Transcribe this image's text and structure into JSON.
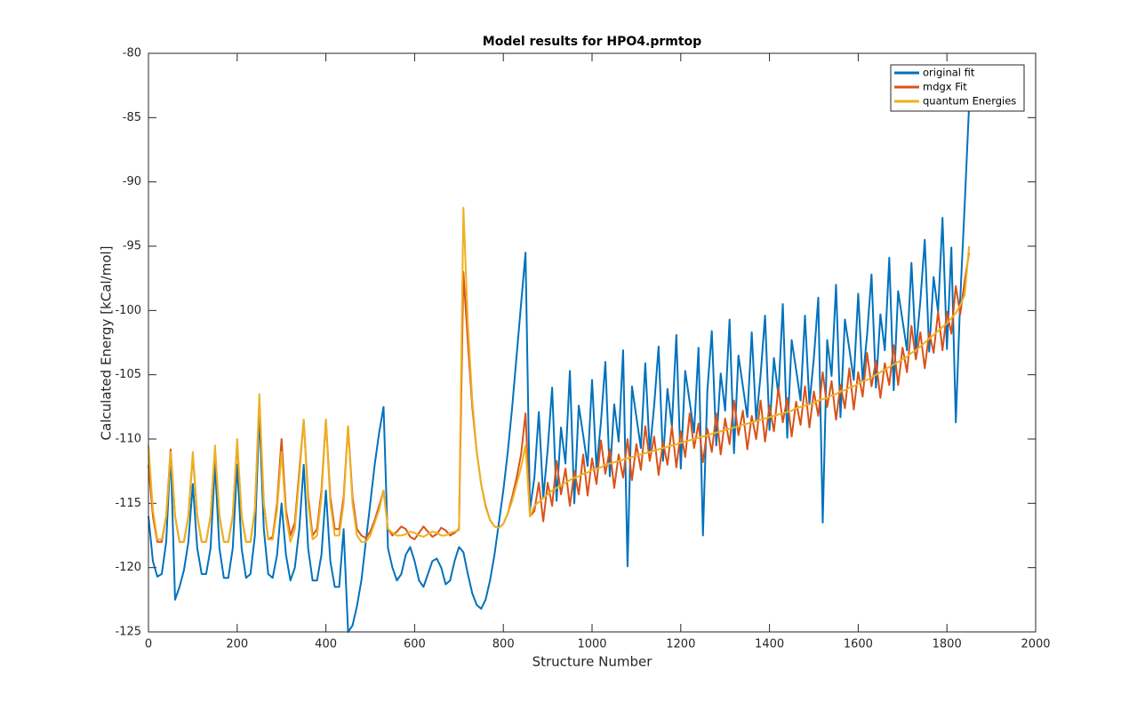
{
  "chart_data": {
    "type": "line",
    "title": "Model results for HPO4.prmtop",
    "x_label": "Structure Number",
    "y_label": "Calculated Energy [kCal/mol]",
    "xlim": [
      0,
      2000
    ],
    "xticks": [
      0,
      200,
      400,
      600,
      800,
      1000,
      1200,
      1400,
      1600,
      1800,
      2000
    ],
    "ylim": [
      -125,
      -80
    ],
    "yticks": [
      -125,
      -120,
      -115,
      -110,
      -105,
      -100,
      -95,
      -90,
      -85,
      -80
    ],
    "grid": false,
    "legend": "northeast",
    "x": [
      0,
      10,
      20,
      30,
      40,
      50,
      60,
      70,
      80,
      90,
      100,
      110,
      120,
      130,
      140,
      150,
      160,
      170,
      180,
      190,
      200,
      210,
      220,
      230,
      240,
      250,
      260,
      270,
      280,
      290,
      300,
      310,
      320,
      330,
      340,
      350,
      360,
      370,
      380,
      390,
      400,
      410,
      420,
      430,
      440,
      450,
      460,
      470,
      480,
      490,
      500,
      510,
      520,
      530,
      540,
      550,
      560,
      570,
      580,
      590,
      600,
      610,
      620,
      630,
      640,
      650,
      660,
      670,
      680,
      690,
      700,
      710,
      720,
      730,
      740,
      750,
      760,
      770,
      780,
      790,
      800,
      810,
      820,
      830,
      840,
      850,
      860,
      870,
      880,
      890,
      900,
      910,
      920,
      930,
      940,
      950,
      960,
      970,
      980,
      990,
      1000,
      1010,
      1020,
      1030,
      1040,
      1050,
      1060,
      1070,
      1080,
      1090,
      1100,
      1110,
      1120,
      1130,
      1140,
      1150,
      1160,
      1170,
      1180,
      1190,
      1200,
      1210,
      1220,
      1230,
      1240,
      1250,
      1260,
      1270,
      1280,
      1290,
      1300,
      1310,
      1320,
      1330,
      1340,
      1350,
      1360,
      1370,
      1380,
      1390,
      1400,
      1410,
      1420,
      1430,
      1440,
      1450,
      1460,
      1470,
      1480,
      1490,
      1500,
      1510,
      1520,
      1530,
      1540,
      1550,
      1560,
      1570,
      1580,
      1590,
      1600,
      1610,
      1620,
      1630,
      1640,
      1650,
      1660,
      1670,
      1680,
      1690,
      1700,
      1710,
      1720,
      1730,
      1740,
      1750,
      1760,
      1770,
      1780,
      1790,
      1800,
      1810,
      1820,
      1830,
      1840,
      1850
    ],
    "series": [
      {
        "name": "original fit",
        "color": "#0072BD",
        "values": [
          -116,
          -119.5,
          -120.7,
          -120.5,
          -118,
          -111,
          -122.5,
          -121.5,
          -120.2,
          -118,
          -113.5,
          -118.5,
          -120.5,
          -120.5,
          -118.5,
          -112,
          -118.5,
          -120.8,
          -120.8,
          -118.5,
          -112,
          -118.5,
          -120.8,
          -120.5,
          -117.5,
          -108,
          -117,
          -120.5,
          -120.8,
          -119,
          -115,
          -119,
          -121,
          -120,
          -117,
          -112,
          -118.5,
          -121,
          -121,
          -119,
          -114,
          -119.5,
          -121.5,
          -121.5,
          -117,
          -125,
          -124.5,
          -123,
          -121,
          -118,
          -115,
          -112,
          -109.5,
          -107.5,
          -118.5,
          -120,
          -121,
          -120.5,
          -119,
          -118.4,
          -119.5,
          -121,
          -121.5,
          -120.5,
          -119.5,
          -119.3,
          -120,
          -121.3,
          -121,
          -119.5,
          -118.4,
          -118.8,
          -120.5,
          -122,
          -122.9,
          -123.2,
          -122.5,
          -121,
          -119,
          -116.5,
          -114,
          -111,
          -107.5,
          -103.5,
          -99.5,
          -95.5,
          -115.5,
          -113,
          -107.9,
          -114.6,
          -110.8,
          -106.0,
          -114.8,
          -109.1,
          -111.9,
          -104.7,
          -115.0,
          -107.4,
          -109.7,
          -112.1,
          -105.4,
          -112.3,
          -108.7,
          -104.0,
          -112.9,
          -107.3,
          -110.2,
          -103.1,
          -119.9,
          -105.9,
          -108.3,
          -110.7,
          -104.1,
          -111.0,
          -107.4,
          -102.8,
          -111.7,
          -106.1,
          -109.0,
          -101.9,
          -112.3,
          -104.7,
          -107.1,
          -109.5,
          -102.9,
          -117.5,
          -106.2,
          -101.6,
          -110.5,
          -104.9,
          -107.8,
          -100.7,
          -111.1,
          -103.5,
          -105.9,
          -108.3,
          -101.7,
          -108.6,
          -105.0,
          -100.4,
          -109.3,
          -103.7,
          -106.6,
          -99.5,
          -109.9,
          -102.3,
          -104.6,
          -107.0,
          -100.4,
          -107.3,
          -103.7,
          -99.0,
          -116.5,
          -102.3,
          -105.1,
          -98.0,
          -108.3,
          -100.7,
          -103.0,
          -105.4,
          -98.7,
          -105.5,
          -101.9,
          -97.2,
          -106.0,
          -100.3,
          -103.1,
          -95.9,
          -106.2,
          -98.5,
          -100.8,
          -103.1,
          -96.3,
          -103.1,
          -99.3,
          -94.5,
          -103.2,
          -97.4,
          -100.1,
          -92.8,
          -103.0,
          -95.1,
          -108.7,
          -99.1,
          -91.8,
          -84
        ]
      },
      {
        "name": "mdgx Fit",
        "color": "#D95319",
        "values": [
          -112,
          -116,
          -118,
          -118,
          -116,
          -110.8,
          -116,
          -118,
          -118,
          -116,
          -111.2,
          -116,
          -118,
          -118,
          -116,
          -110.8,
          -116,
          -118,
          -118,
          -116,
          -110.3,
          -116,
          -118,
          -118,
          -115.5,
          -107,
          -115,
          -117.8,
          -117.6,
          -115,
          -110,
          -115.5,
          -117.5,
          -116.5,
          -112.5,
          -108.5,
          -114.5,
          -117.5,
          -117,
          -114,
          -108.5,
          -114.5,
          -117,
          -117,
          -114.5,
          -109,
          -114.5,
          -117,
          -117.5,
          -117.7,
          -117.2,
          -116.3,
          -115.2,
          -114,
          -117,
          -117.5,
          -117.2,
          -116.8,
          -117,
          -117.6,
          -117.8,
          -117.3,
          -116.8,
          -117.2,
          -117.6,
          -117.4,
          -116.9,
          -117.1,
          -117.5,
          -117.3,
          -117,
          -97,
          -102.5,
          -107.5,
          -111,
          -113.5,
          -115.2,
          -116.3,
          -116.8,
          -116.9,
          -116.6,
          -115.8,
          -114.5,
          -113,
          -111.2,
          -108,
          -116,
          -115.6,
          -113.4,
          -116.4,
          -113.4,
          -115.2,
          -111.7,
          -114.3,
          -112.3,
          -115.2,
          -112.5,
          -114.3,
          -111.2,
          -114.4,
          -111.5,
          -113.5,
          -110.1,
          -112.7,
          -110.8,
          -113.8,
          -111.2,
          -113.0,
          -110.0,
          -113.2,
          -110.4,
          -112.4,
          -109.0,
          -111.7,
          -109.8,
          -112.8,
          -110.2,
          -112.0,
          -109.0,
          -112.2,
          -109.4,
          -111.4,
          -108.0,
          -110.7,
          -108.8,
          -111.8,
          -109.2,
          -111.0,
          -108.0,
          -111.2,
          -108.4,
          -110.4,
          -107.0,
          -109.7,
          -107.8,
          -110.8,
          -108.2,
          -110.0,
          -107.0,
          -110.2,
          -107.4,
          -109.4,
          -106.0,
          -108.7,
          -106.8,
          -109.8,
          -107.1,
          -108.9,
          -105.9,
          -109.1,
          -106.3,
          -108.2,
          -104.8,
          -107.5,
          -105.5,
          -108.5,
          -105.8,
          -107.6,
          -104.5,
          -107.7,
          -104.8,
          -106.7,
          -103.3,
          -105.9,
          -103.9,
          -106.8,
          -104.1,
          -105.8,
          -102.7,
          -105.8,
          -102.9,
          -104.8,
          -101.2,
          -103.8,
          -101.7,
          -104.5,
          -101.7,
          -103.3,
          -100.1,
          -103.1,
          -100.1,
          -101.8,
          -98.1,
          -100.3,
          -97.7,
          -95.5
        ]
      },
      {
        "name": "quantum Energies",
        "color": "#EDB120",
        "values": [
          -110.5,
          -115.5,
          -117.8,
          -117.8,
          -116,
          -111,
          -116,
          -118,
          -118,
          -116,
          -111,
          -116,
          -118,
          -118,
          -116,
          -110.5,
          -116,
          -118,
          -118,
          -116,
          -110,
          -116,
          -118,
          -118,
          -115.5,
          -106.5,
          -115,
          -117.8,
          -117.8,
          -115.5,
          -111,
          -116,
          -118,
          -117,
          -113,
          -108.5,
          -115,
          -117.8,
          -117.5,
          -114.5,
          -108.5,
          -115,
          -117.5,
          -117.5,
          -115,
          -109,
          -115,
          -117.5,
          -118,
          -118,
          -117.5,
          -116.5,
          -115.5,
          -114,
          -117,
          -117.3,
          -117.5,
          -117.5,
          -117.4,
          -117.2,
          -117.3,
          -117.5,
          -117.6,
          -117.4,
          -117.2,
          -117.3,
          -117.5,
          -117.5,
          -117.3,
          -117.2,
          -117.1,
          -92,
          -101,
          -107,
          -111,
          -113.5,
          -115.3,
          -116.3,
          -116.8,
          -116.9,
          -116.6,
          -115.8,
          -114.8,
          -113.5,
          -112.2,
          -110.5,
          -116,
          -115.2,
          -114.9,
          -114.6,
          -114.3,
          -114.0,
          -113.8,
          -113.6,
          -113.4,
          -113.2,
          -113.0,
          -112.9,
          -112.7,
          -112.6,
          -112.4,
          -112.3,
          -112.2,
          -112.0,
          -111.9,
          -111.8,
          -111.7,
          -111.6,
          -111.5,
          -111.4,
          -111.3,
          -111.2,
          -111.1,
          -111.0,
          -110.9,
          -110.8,
          -110.7,
          -110.6,
          -110.5,
          -110.4,
          -110.3,
          -110.2,
          -110.1,
          -110.0,
          -109.9,
          -109.8,
          -109.7,
          -109.6,
          -109.5,
          -109.4,
          -109.3,
          -109.2,
          -109.1,
          -109.0,
          -108.9,
          -108.8,
          -108.7,
          -108.6,
          -108.5,
          -108.4,
          -108.3,
          -108.2,
          -108.1,
          -108.0,
          -107.9,
          -107.8,
          -107.6,
          -107.5,
          -107.4,
          -107.3,
          -107.2,
          -107.0,
          -106.9,
          -106.8,
          -106.6,
          -106.5,
          -106.3,
          -106.2,
          -106.0,
          -105.9,
          -105.7,
          -105.5,
          -105.4,
          -105.2,
          -105.0,
          -104.8,
          -104.6,
          -104.4,
          -104.2,
          -104.0,
          -103.8,
          -103.6,
          -103.3,
          -103.1,
          -102.8,
          -102.5,
          -102.2,
          -101.9,
          -101.6,
          -101.3,
          -101.0,
          -100.6,
          -100.2,
          -99.6,
          -98.8,
          -95
        ]
      }
    ]
  }
}
